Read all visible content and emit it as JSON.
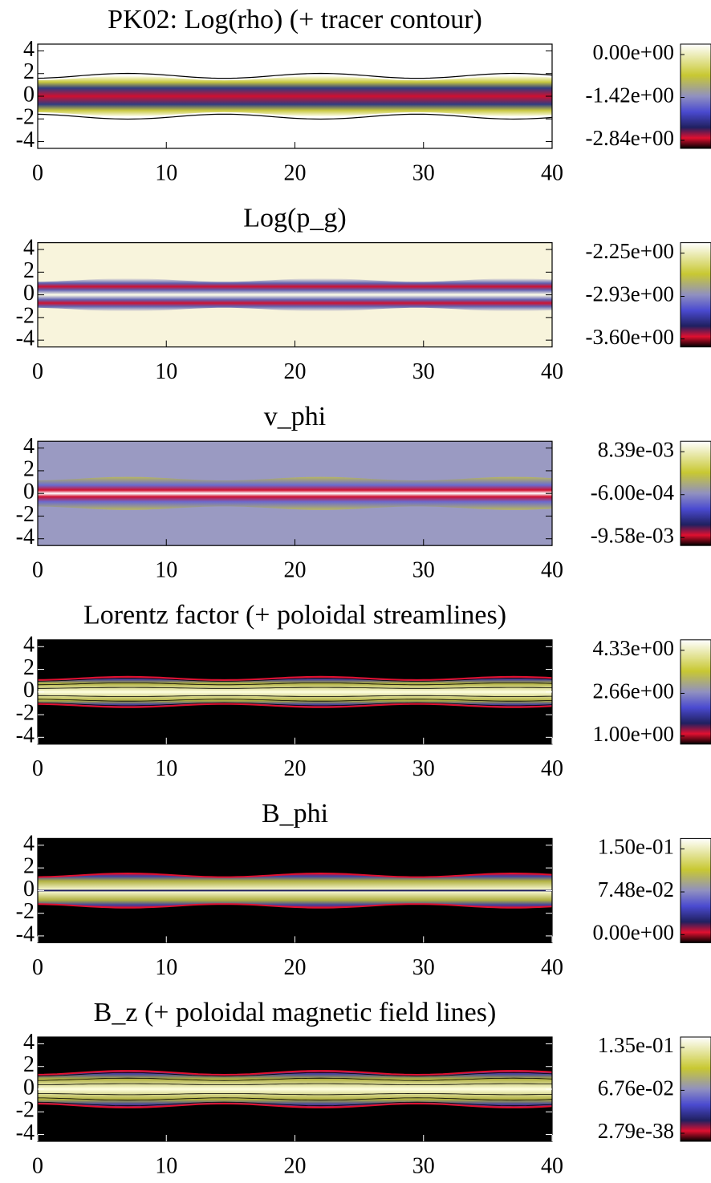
{
  "chart_data": [
    {
      "type": "heatmap",
      "title": "PK02: Log(rho) (+ tracer contour)",
      "xlim": [
        0,
        40
      ],
      "xticks": [
        0,
        10,
        20,
        30,
        40
      ],
      "ylim": [
        -4.6,
        4.6
      ],
      "yticks": [
        4,
        2,
        0,
        -2,
        -4
      ],
      "colorbar_ticks": [
        {
          "value": 0,
          "label": "0.00e+00"
        },
        {
          "value": -1.42,
          "label": "-1.42e+00"
        },
        {
          "value": -2.84,
          "label": "-2.84e+00"
        }
      ]
    },
    {
      "type": "heatmap",
      "title": "Log(p_g)",
      "xlim": [
        0,
        40
      ],
      "xticks": [
        0,
        10,
        20,
        30,
        40
      ],
      "ylim": [
        -4.6,
        4.6
      ],
      "yticks": [
        4,
        2,
        0,
        -2,
        -4
      ],
      "colorbar_ticks": [
        {
          "value": -2.25,
          "label": "-2.25e+00"
        },
        {
          "value": -2.93,
          "label": "-2.93e+00"
        },
        {
          "value": -3.6,
          "label": "-3.60e+00"
        }
      ]
    },
    {
      "type": "heatmap",
      "title": "v_phi",
      "xlim": [
        0,
        40
      ],
      "xticks": [
        0,
        10,
        20,
        30,
        40
      ],
      "ylim": [
        -4.6,
        4.6
      ],
      "yticks": [
        4,
        2,
        0,
        -2,
        -4
      ],
      "colorbar_ticks": [
        {
          "value": 0.00839,
          "label": "8.39e-03"
        },
        {
          "value": -0.0006,
          "label": "-6.00e-04"
        },
        {
          "value": -0.00958,
          "label": "-9.58e-03"
        }
      ]
    },
    {
      "type": "heatmap",
      "title": "Lorentz factor (+ poloidal streamlines)",
      "xlim": [
        0,
        40
      ],
      "xticks": [
        0,
        10,
        20,
        30,
        40
      ],
      "ylim": [
        -4.6,
        4.6
      ],
      "yticks": [
        4,
        2,
        0,
        -2,
        -4
      ],
      "colorbar_ticks": [
        {
          "value": 4.33,
          "label": "4.33e+00"
        },
        {
          "value": 2.66,
          "label": "2.66e+00"
        },
        {
          "value": 1,
          "label": "1.00e+00"
        }
      ]
    },
    {
      "type": "heatmap",
      "title": "B_phi",
      "xlim": [
        0,
        40
      ],
      "xticks": [
        0,
        10,
        20,
        30,
        40
      ],
      "ylim": [
        -4.6,
        4.6
      ],
      "yticks": [
        4,
        2,
        0,
        -2,
        -4
      ],
      "colorbar_ticks": [
        {
          "value": 0.15,
          "label": "1.50e-01"
        },
        {
          "value": 0.0748,
          "label": "7.48e-02"
        },
        {
          "value": 0,
          "label": "0.00e+00"
        }
      ]
    },
    {
      "type": "heatmap",
      "title": "B_z (+ poloidal magnetic field lines)",
      "xlim": [
        0,
        40
      ],
      "xticks": [
        0,
        10,
        20,
        30,
        40
      ],
      "ylim": [
        -4.6,
        4.6
      ],
      "yticks": [
        4,
        2,
        0,
        -2,
        -4
      ],
      "colorbar_ticks": [
        {
          "value": 0.135,
          "label": "1.35e-01"
        },
        {
          "value": 0.0676,
          "label": "6.76e-02"
        },
        {
          "value": 2.79e-38,
          "label": "2.79e-38"
        }
      ]
    }
  ]
}
